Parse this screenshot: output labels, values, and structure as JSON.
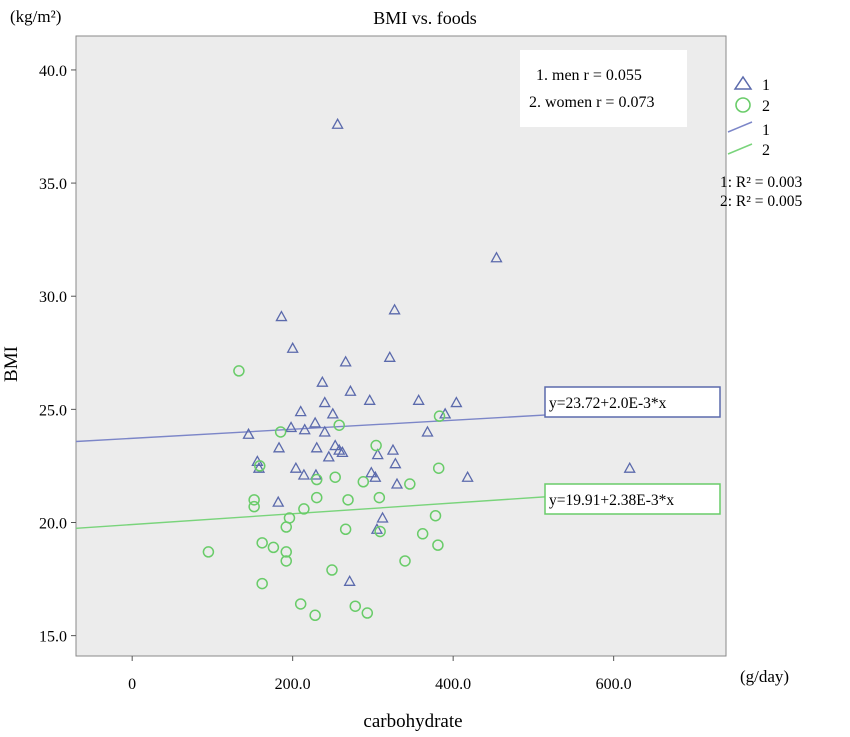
{
  "chart_data": {
    "type": "scatter",
    "title": "BMI vs. foods",
    "xlabel": "carbohydrate",
    "ylabel": "BMI",
    "x_unit": "(g/day)",
    "y_unit": "(kg/m²)",
    "xlim": [
      -70,
      740
    ],
    "ylim": [
      14.1,
      41.5
    ],
    "x_ticks": [
      0,
      200,
      400,
      600
    ],
    "x_tick_labels": [
      "0",
      "200.0",
      "400.0",
      "600.0"
    ],
    "y_ticks": [
      15,
      20,
      25,
      30,
      35,
      40
    ],
    "y_tick_labels": [
      "15.0",
      "20.0",
      "25.0",
      "30.0",
      "35.0",
      "40.0"
    ],
    "grid": false,
    "legend_placement": "right",
    "legend": {
      "entries": [
        {
          "label": "1",
          "symbol": "triangle",
          "color": "#5b6aac"
        },
        {
          "label": "2",
          "symbol": "circle",
          "color": "#69cc69"
        },
        {
          "label": "1",
          "symbol": "line",
          "color": "#7c86c8"
        },
        {
          "label": "2",
          "symbol": "line",
          "color": "#79d47b"
        }
      ],
      "r2": [
        "1: R² = 0.003",
        "2: R² = 0.005"
      ]
    },
    "annotation_box": {
      "lines": [
        "1. men  r = 0.055",
        "2. women  r = 0.073"
      ]
    },
    "series": [
      {
        "name": "1",
        "marker": "triangle",
        "color": "#5b6aac",
        "points": [
          [
            256,
            37.6
          ],
          [
            454,
            31.7
          ],
          [
            186,
            29.1
          ],
          [
            327,
            29.4
          ],
          [
            200,
            27.7
          ],
          [
            321,
            27.3
          ],
          [
            266,
            27.1
          ],
          [
            237,
            26.2
          ],
          [
            272,
            25.8
          ],
          [
            240,
            25.3
          ],
          [
            296,
            25.4
          ],
          [
            357,
            25.4
          ],
          [
            404,
            25.3
          ],
          [
            390,
            24.8
          ],
          [
            210,
            24.9
          ],
          [
            250,
            24.8
          ],
          [
            228,
            24.4
          ],
          [
            215,
            24.1
          ],
          [
            240,
            24.0
          ],
          [
            198,
            24.2
          ],
          [
            145,
            23.9
          ],
          [
            368,
            24.0
          ],
          [
            230,
            23.3
          ],
          [
            253,
            23.4
          ],
          [
            258,
            23.2
          ],
          [
            262,
            23.1
          ],
          [
            325,
            23.2
          ],
          [
            306,
            23.0
          ],
          [
            183,
            23.3
          ],
          [
            245,
            22.9
          ],
          [
            328,
            22.6
          ],
          [
            156,
            22.7
          ],
          [
            158,
            22.4
          ],
          [
            204,
            22.4
          ],
          [
            214,
            22.1
          ],
          [
            229,
            22.1
          ],
          [
            298,
            22.2
          ],
          [
            303,
            22.0
          ],
          [
            418,
            22.0
          ],
          [
            620,
            22.4
          ],
          [
            182,
            20.9
          ],
          [
            330,
            21.7
          ],
          [
            312,
            20.2
          ],
          [
            305,
            19.7
          ],
          [
            271,
            17.4
          ]
        ]
      },
      {
        "name": "2",
        "marker": "circle",
        "color": "#69cc69",
        "points": [
          [
            133,
            26.7
          ],
          [
            383,
            24.7
          ],
          [
            185,
            24.0
          ],
          [
            258,
            24.3
          ],
          [
            304,
            23.4
          ],
          [
            159,
            22.5
          ],
          [
            253,
            22.0
          ],
          [
            382,
            22.4
          ],
          [
            230,
            21.9
          ],
          [
            288,
            21.8
          ],
          [
            346,
            21.7
          ],
          [
            230,
            21.1
          ],
          [
            269,
            21.0
          ],
          [
            308,
            21.1
          ],
          [
            152,
            21.0
          ],
          [
            152,
            20.7
          ],
          [
            214,
            20.6
          ],
          [
            196,
            20.2
          ],
          [
            378,
            20.3
          ],
          [
            192,
            19.8
          ],
          [
            266,
            19.7
          ],
          [
            309,
            19.6
          ],
          [
            362,
            19.5
          ],
          [
            162,
            19.1
          ],
          [
            176,
            18.9
          ],
          [
            192,
            18.7
          ],
          [
            381,
            19.0
          ],
          [
            95,
            18.7
          ],
          [
            192,
            18.3
          ],
          [
            340,
            18.3
          ],
          [
            249,
            17.9
          ],
          [
            162,
            17.3
          ],
          [
            210,
            16.4
          ],
          [
            278,
            16.3
          ],
          [
            228,
            15.9
          ],
          [
            293,
            16.0
          ]
        ]
      }
    ],
    "fit_lines": [
      {
        "series": "1",
        "intercept": 23.72,
        "slope": 0.002,
        "equation": "y=23.72+2.0E-3*x",
        "color": "#7c86c8"
      },
      {
        "series": "2",
        "intercept": 19.91,
        "slope": 0.00238,
        "equation": "y=19.91+2.38E-3*x",
        "color": "#79d47b"
      }
    ],
    "plot_background": "#ececec"
  }
}
